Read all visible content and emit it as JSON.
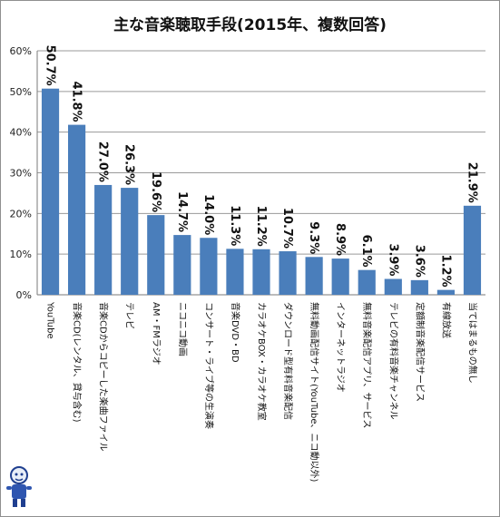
{
  "chart_data": {
    "type": "bar",
    "title": "主な音楽聴取手段(2015年、複数回答)",
    "xlabel": "",
    "ylabel": "",
    "ylim": [
      0,
      60
    ],
    "yticks": [
      "0%",
      "10%",
      "20%",
      "30%",
      "40%",
      "50%",
      "60%"
    ],
    "grid": true,
    "legend": "none",
    "bar_color": "#4a7ebb",
    "categories": [
      "YouTube",
      "音楽CD(レンタル、貸与含む)",
      "音楽CDからコピーした楽曲ファイル",
      "テレビ",
      "AM・FMラジオ",
      "ニコニコ動画",
      "コンサート・ライブ等の生演奏",
      "音楽DVD・BD",
      "カラオケBOX・カラオケ教室",
      "ダウンロード型有料音楽配信",
      "無料動画配信サイト(YouTube、ニコ動以外)",
      "インターネットラジオ",
      "無料音楽配信アプリ、サービス",
      "テレビの有料音楽チャンネル",
      "定額制音楽配信サービス",
      "有線放送",
      "当てはまるもの無し"
    ],
    "values": [
      50.7,
      41.8,
      27.0,
      26.3,
      19.6,
      14.7,
      14.0,
      11.3,
      11.2,
      10.7,
      9.3,
      8.9,
      6.1,
      3.9,
      3.6,
      1.2,
      21.9
    ],
    "data_labels": [
      "50.7%",
      "41.8%",
      "27.0%",
      "26.3%",
      "19.6%",
      "14.7%",
      "14.0%",
      "11.3%",
      "11.2%",
      "10.7%",
      "9.3%",
      "8.9%",
      "6.1%",
      "3.9%",
      "3.6%",
      "1.2%",
      "21.9%"
    ]
  }
}
